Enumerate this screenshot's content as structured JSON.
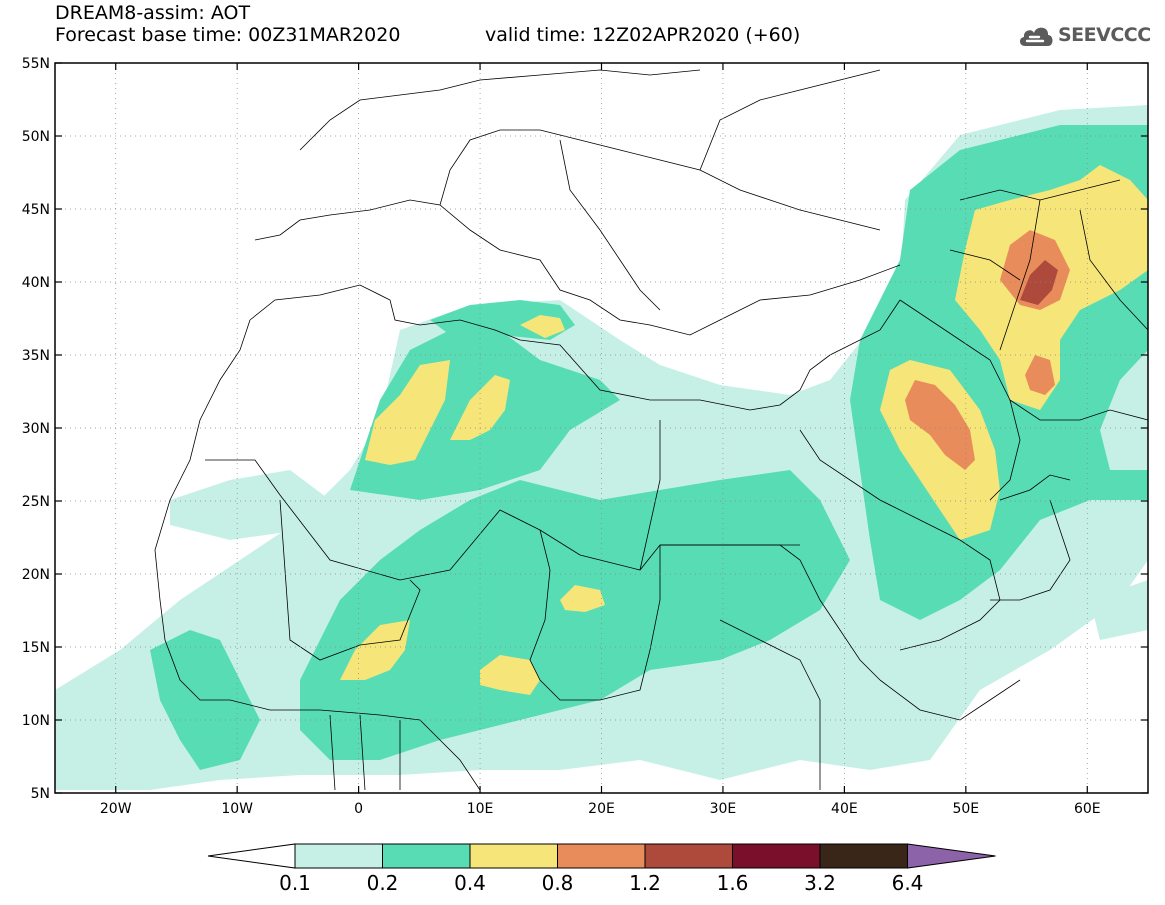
{
  "header": {
    "line1": "DREAM8-assim: AOT",
    "line2": "Forecast base time: 00Z31MAR2020",
    "valid": "valid time: 12Z02APR2020 (+60)"
  },
  "logo": {
    "text": "SEEVCCC",
    "icon": "cloud-icon"
  },
  "map": {
    "lat_labels": [
      "55N",
      "50N",
      "45N",
      "40N",
      "35N",
      "30N",
      "25N",
      "20N",
      "15N",
      "10N",
      "5N"
    ],
    "lat_values": [
      55,
      50,
      45,
      40,
      35,
      30,
      25,
      20,
      15,
      10,
      5
    ],
    "lon_labels": [
      "20W",
      "10W",
      "0",
      "10E",
      "20E",
      "30E",
      "40E",
      "50E",
      "60E"
    ],
    "lon_values": [
      -20,
      -10,
      0,
      10,
      20,
      30,
      40,
      50,
      60
    ],
    "lon_range": [
      -25,
      65
    ],
    "lat_range": [
      5,
      55
    ]
  },
  "colorbar": {
    "labels": [
      "0.1",
      "0.2",
      "0.4",
      "0.8",
      "1.2",
      "1.6",
      "3.2",
      "6.4"
    ],
    "colors": [
      "#c6f0e6",
      "#58dcb4",
      "#f6e67a",
      "#e98c5c",
      "#ad4a3c",
      "#7a0f2c",
      "#3a2618",
      "#8c62a8"
    ]
  }
}
